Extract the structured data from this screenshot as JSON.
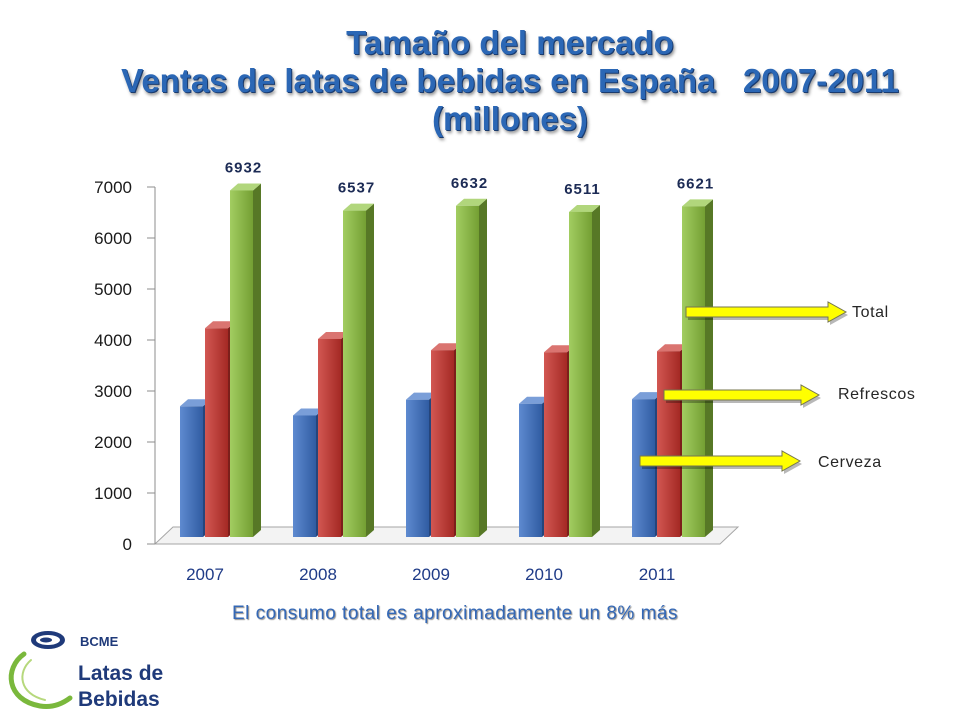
{
  "chart_data": {
    "type": "bar",
    "three_d": true,
    "title": [
      "Tamaño del mercado",
      "Ventas de latas de bebidas en España   2007-2011",
      "(millones)"
    ],
    "categories": [
      "2007",
      "2008",
      "2009",
      "2010",
      "2011"
    ],
    "series": [
      {
        "name": "Cerveza",
        "values": [
          2700,
          2520,
          2830,
          2750,
          2840
        ],
        "color": "#3b70c6",
        "data_labels": false
      },
      {
        "name": "Refrescos",
        "values": [
          4230,
          4020,
          3800,
          3760,
          3780
        ],
        "color": "#c8322c",
        "data_labels": false
      },
      {
        "name": "Total",
        "values": [
          6932,
          6537,
          6632,
          6511,
          6621
        ],
        "color": "#8dc23e",
        "data_labels": true
      }
    ],
    "ylim": [
      0,
      7000
    ],
    "yticks": [
      0,
      1000,
      2000,
      3000,
      4000,
      5000,
      6000,
      7000
    ],
    "grid": false,
    "legend": {
      "placement": "right",
      "order": [
        2,
        1,
        0
      ],
      "arrow_color": "#ffff00"
    },
    "annotations": [
      "El consumo total es aproximadamente un 8% más"
    ]
  },
  "colors": {
    "title": "#2b67b5",
    "note": "#3468b6",
    "tick_labels_y": "#1a1a1a",
    "tick_labels_x": "#1f3b87",
    "data_labels": "#1c2b55",
    "legend_labels": "#262626"
  },
  "logo": {
    "brand": "BCME",
    "name_line1": "Latas de",
    "name_line2": "Bebidas",
    "icon": "can-top-icon",
    "swoosh": "green-swoosh-icon",
    "navy": "#1f3a7a",
    "green": "#7ab83c"
  }
}
